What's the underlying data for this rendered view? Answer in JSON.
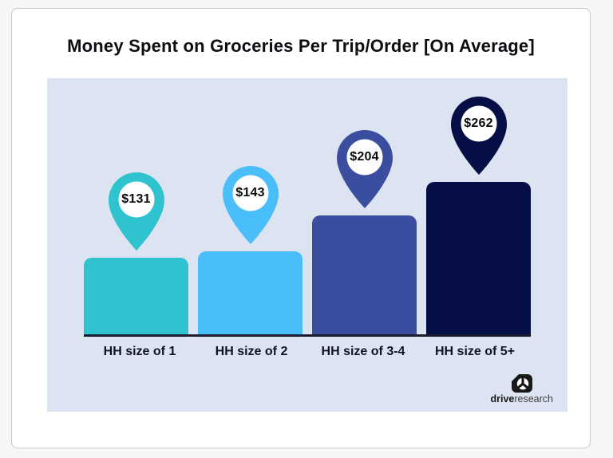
{
  "chart_data": {
    "type": "bar",
    "title": "Money Spent on Groceries Per Trip/Order [On Average]",
    "categories": [
      "HH size of 1",
      "HH size of 2",
      "HH size of 3-4",
      "HH size of 5+"
    ],
    "values": [
      131,
      143,
      204,
      262
    ],
    "value_labels": [
      "$131",
      "$143",
      "$204",
      "$262"
    ],
    "series_colors": [
      "#2ec3ce",
      "#49bef8",
      "#3b4d9e",
      "#050e45"
    ],
    "xlabel": "",
    "ylabel": "",
    "grid": "off",
    "legend": "none",
    "value_marker_style": "map-pin with white circle above each bar",
    "panel_background": "#dde4f1",
    "axis_line_color": "#1b1c30"
  },
  "branding": {
    "logo_bold": "drive",
    "logo_regular": "research",
    "logo_color": "#181818"
  }
}
